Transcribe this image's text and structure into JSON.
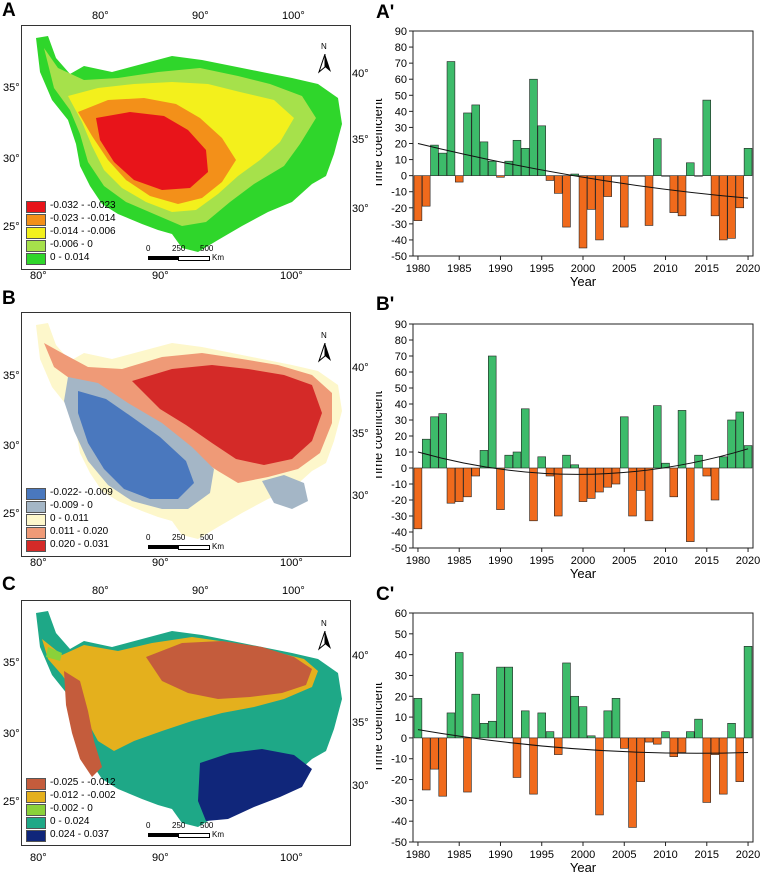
{
  "maps": [
    {
      "letter": "A",
      "top_lon_labels": [
        "80°",
        "90°",
        "100°"
      ],
      "bottom_lon_labels": [
        "80°",
        "90°",
        "100°"
      ],
      "left_lat_labels": [
        "35°",
        "30°",
        "25°"
      ],
      "right_lat_labels": [
        "40°",
        "35°",
        "30°"
      ],
      "legend": [
        {
          "label": "-0.032 - -0.023",
          "color": "#e8141a"
        },
        {
          "label": "-0.023 - -0.014",
          "color": "#f39019"
        },
        {
          "label": "-0.014 - -0.006",
          "color": "#f3f01c"
        },
        {
          "label": "-0.006 - 0",
          "color": "#a6e14b"
        },
        {
          "label": "0 - 0.014",
          "color": "#2fd62b"
        }
      ],
      "scale_labels": [
        "0",
        "250",
        "500"
      ],
      "scale_unit": "Km",
      "north": "N"
    },
    {
      "letter": "B",
      "top_lon_labels": [],
      "bottom_lon_labels": [
        "80°",
        "90°",
        "100°"
      ],
      "left_lat_labels": [
        "35°",
        "30°",
        "25°"
      ],
      "right_lat_labels": [
        "40°",
        "35°",
        "30°"
      ],
      "legend": [
        {
          "label": "-0.022- -0.009",
          "color": "#4a78be"
        },
        {
          "label": "-0.009 - 0",
          "color": "#a4b6c6"
        },
        {
          "label": "0 - 0.011",
          "color": "#fdf7cb"
        },
        {
          "label": "0.011 - 0.020",
          "color": "#ef9a77"
        },
        {
          "label": "0.020 - 0.031",
          "color": "#d42a28"
        }
      ],
      "scale_labels": [
        "0",
        "250",
        "500"
      ],
      "scale_unit": "Km",
      "north": "N"
    },
    {
      "letter": "C",
      "top_lon_labels": [
        "80°",
        "90°",
        "100°"
      ],
      "bottom_lon_labels": [
        "80°",
        "90°",
        "100°"
      ],
      "left_lat_labels": [
        "35°",
        "30°",
        "25°"
      ],
      "right_lat_labels": [
        "40°",
        "35°",
        "30°"
      ],
      "legend": [
        {
          "label": "-0.025 - -0.012",
          "color": "#c45c3c"
        },
        {
          "label": "-0.012 - -0.002",
          "color": "#e4b01d"
        },
        {
          "label": "-0.002 - 0",
          "color": "#8ad13a"
        },
        {
          "label": "0 - 0.024",
          "color": "#1ea887"
        },
        {
          "label": "0.024 - 0.037",
          "color": "#10267a"
        }
      ],
      "scale_labels": [
        "0",
        "250",
        "500"
      ],
      "scale_unit": "Km",
      "north": "N"
    }
  ],
  "colors": {
    "positive": "#3dbb6a",
    "negative": "#f06a1c",
    "bar_stroke": "#222222",
    "trend": "#111111"
  },
  "chart_data": [
    {
      "type": "bar",
      "panel": "A'",
      "xlabel": "Year",
      "ylabel": "Time coefficient",
      "ylim": [
        -50,
        90
      ],
      "yticks": [
        -50,
        -40,
        -30,
        -20,
        -10,
        0,
        10,
        20,
        30,
        40,
        50,
        60,
        70,
        80,
        90
      ],
      "xticks": [
        1980,
        1985,
        1990,
        1995,
        2000,
        2005,
        2010,
        2015,
        2020
      ],
      "years": [
        1980,
        1981,
        1982,
        1983,
        1984,
        1985,
        1986,
        1987,
        1988,
        1989,
        1990,
        1991,
        1992,
        1993,
        1994,
        1995,
        1996,
        1997,
        1998,
        1999,
        2000,
        2001,
        2002,
        2003,
        2004,
        2005,
        2006,
        2007,
        2008,
        2009,
        2010,
        2011,
        2012,
        2013,
        2014,
        2015,
        2016,
        2017,
        2018,
        2019,
        2020
      ],
      "values": [
        -28,
        -19,
        19,
        14,
        71,
        -4,
        39,
        44,
        21,
        9,
        -1,
        9,
        22,
        17,
        60,
        31,
        -3,
        -11,
        -32,
        1,
        -45,
        -21,
        -40,
        -13,
        0,
        -32,
        0,
        0,
        -31,
        23,
        0,
        -23,
        -25,
        8,
        0,
        47,
        -25,
        -40,
        -39,
        -20,
        17
      ],
      "trend": {
        "start": 20,
        "end": -14
      }
    },
    {
      "type": "bar",
      "panel": "B'",
      "xlabel": "Year",
      "ylabel": "Time coefficient",
      "ylim": [
        -50,
        90
      ],
      "yticks": [
        -50,
        -40,
        -30,
        -20,
        -10,
        0,
        10,
        20,
        30,
        40,
        50,
        60,
        70,
        80,
        90
      ],
      "xticks": [
        1980,
        1985,
        1990,
        1995,
        2000,
        2005,
        2010,
        2015,
        2020
      ],
      "years": [
        1980,
        1981,
        1982,
        1983,
        1984,
        1985,
        1986,
        1987,
        1988,
        1989,
        1990,
        1991,
        1992,
        1993,
        1994,
        1995,
        1996,
        1997,
        1998,
        1999,
        2000,
        2001,
        2002,
        2003,
        2004,
        2005,
        2006,
        2007,
        2008,
        2009,
        2010,
        2011,
        2012,
        2013,
        2014,
        2015,
        2016,
        2017,
        2018,
        2019,
        2020
      ],
      "values": [
        -38,
        18,
        32,
        34,
        -22,
        -21,
        -18,
        -5,
        11,
        70,
        -26,
        8,
        10,
        37,
        -33,
        7,
        -5,
        -30,
        8,
        2,
        -21,
        -19,
        -15,
        -12,
        -10,
        32,
        -30,
        -14,
        -33,
        39,
        3,
        -18,
        36,
        -46,
        8,
        -5,
        -20,
        7,
        30,
        35,
        14
      ],
      "trend": {
        "start": 10,
        "end": 12
      }
    },
    {
      "type": "bar",
      "panel": "C'",
      "xlabel": "Year",
      "ylabel": "Time coefficient",
      "ylim": [
        -50,
        60
      ],
      "yticks": [
        -50,
        -40,
        -30,
        -20,
        -10,
        0,
        10,
        20,
        30,
        40,
        50,
        60
      ],
      "xticks": [
        1980,
        1985,
        1990,
        1995,
        2000,
        2005,
        2010,
        2015,
        2020
      ],
      "years": [
        1980,
        1981,
        1982,
        1983,
        1984,
        1985,
        1986,
        1987,
        1988,
        1989,
        1990,
        1991,
        1992,
        1993,
        1994,
        1995,
        1996,
        1997,
        1998,
        1999,
        2000,
        2001,
        2002,
        2003,
        2004,
        2005,
        2006,
        2007,
        2008,
        2009,
        2010,
        2011,
        2012,
        2013,
        2014,
        2015,
        2016,
        2017,
        2018,
        2019,
        2020
      ],
      "values": [
        19,
        -25,
        -15,
        -28,
        12,
        41,
        -26,
        21,
        7,
        8,
        34,
        34,
        -19,
        13,
        -27,
        12,
        3,
        -8,
        36,
        20,
        15,
        1,
        -37,
        13,
        19,
        -5,
        -43,
        -21,
        -2,
        -3,
        3,
        -9,
        -7,
        3,
        9,
        -31,
        -8,
        -27,
        7,
        -21,
        44
      ],
      "trend": {
        "start": 4,
        "end": -7
      }
    }
  ]
}
